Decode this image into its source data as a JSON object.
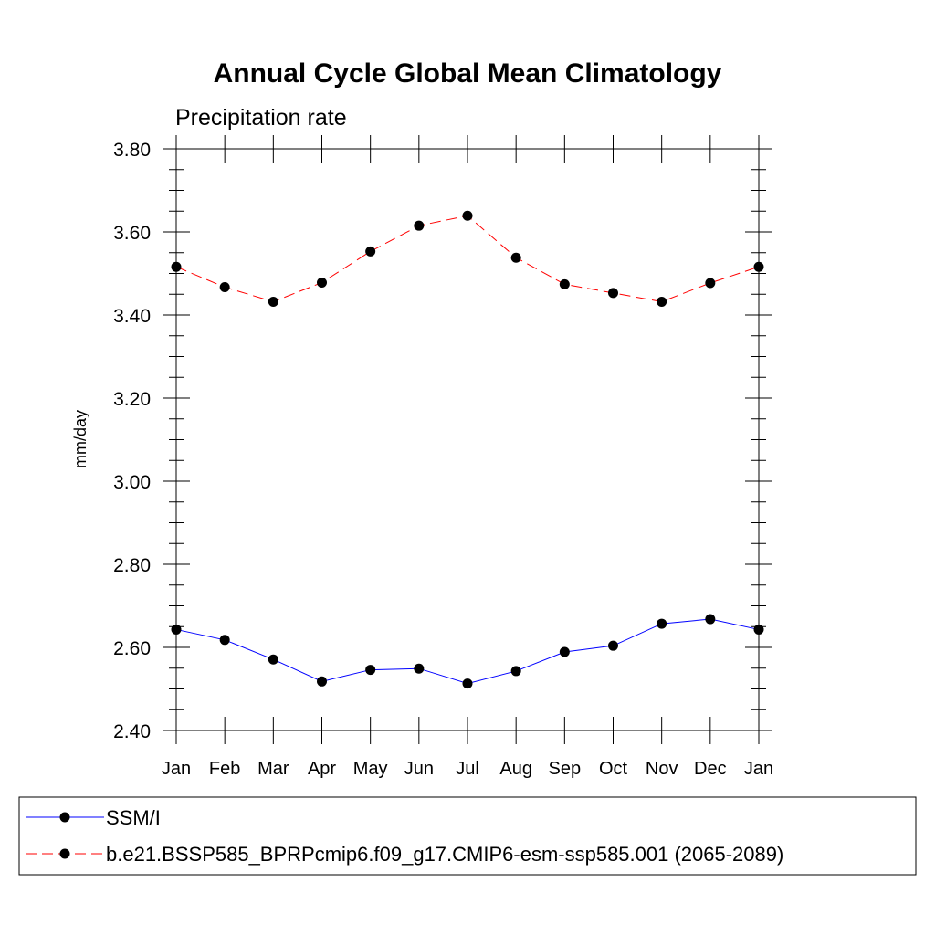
{
  "chart_data": {
    "type": "line",
    "title": "Annual Cycle Global Mean Climatology",
    "subtitle": "Precipitation rate",
    "xlabel": "",
    "ylabel": "mm/day",
    "categories": [
      "Jan",
      "Feb",
      "Mar",
      "Apr",
      "May",
      "Jun",
      "Jul",
      "Aug",
      "Sep",
      "Oct",
      "Nov",
      "Dec",
      "Jan"
    ],
    "ylim": [
      2.4,
      3.8
    ],
    "yticks": [
      "2.40",
      "2.60",
      "2.80",
      "3.00",
      "3.20",
      "3.40",
      "3.60",
      "3.80"
    ],
    "yminor_step": 0.05,
    "grid": false,
    "legend_position": "bottom",
    "series": [
      {
        "name": "SSM/I",
        "color": "#0000ff",
        "dash": "solid",
        "marker": "filled-circle",
        "values": [
          2.643,
          2.618,
          2.571,
          2.518,
          2.546,
          2.549,
          2.513,
          2.543,
          2.589,
          2.604,
          2.657,
          2.668,
          2.643
        ]
      },
      {
        "name": "b.e21.BSSP585_BPRPcmip6.f09_g17.CMIP6-esm-ssp585.001 (2065-2089)",
        "color": "#ff0000",
        "dash": "dashed",
        "marker": "filled-circle",
        "values": [
          3.516,
          3.467,
          3.432,
          3.478,
          3.553,
          3.615,
          3.639,
          3.538,
          3.474,
          3.453,
          3.432,
          3.477,
          3.516
        ]
      }
    ]
  }
}
